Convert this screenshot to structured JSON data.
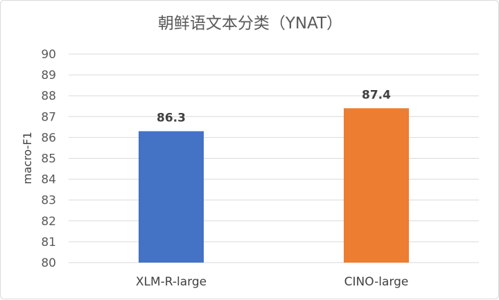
{
  "chart_data": {
    "type": "bar",
    "title": "朝鲜语文本分类（YNAT）",
    "xlabel": "",
    "ylabel": "macro-F1",
    "categories": [
      "XLM-R-large",
      "CINO-large"
    ],
    "values": [
      86.3,
      87.4
    ],
    "data_labels": [
      "86.3",
      "87.4"
    ],
    "bar_colors": [
      "#4472C4",
      "#ED7D31"
    ],
    "ylim": [
      80,
      90
    ],
    "yticks": [
      80,
      81,
      82,
      83,
      84,
      85,
      86,
      87,
      88,
      89,
      90
    ],
    "grid": true,
    "legend": "none"
  }
}
